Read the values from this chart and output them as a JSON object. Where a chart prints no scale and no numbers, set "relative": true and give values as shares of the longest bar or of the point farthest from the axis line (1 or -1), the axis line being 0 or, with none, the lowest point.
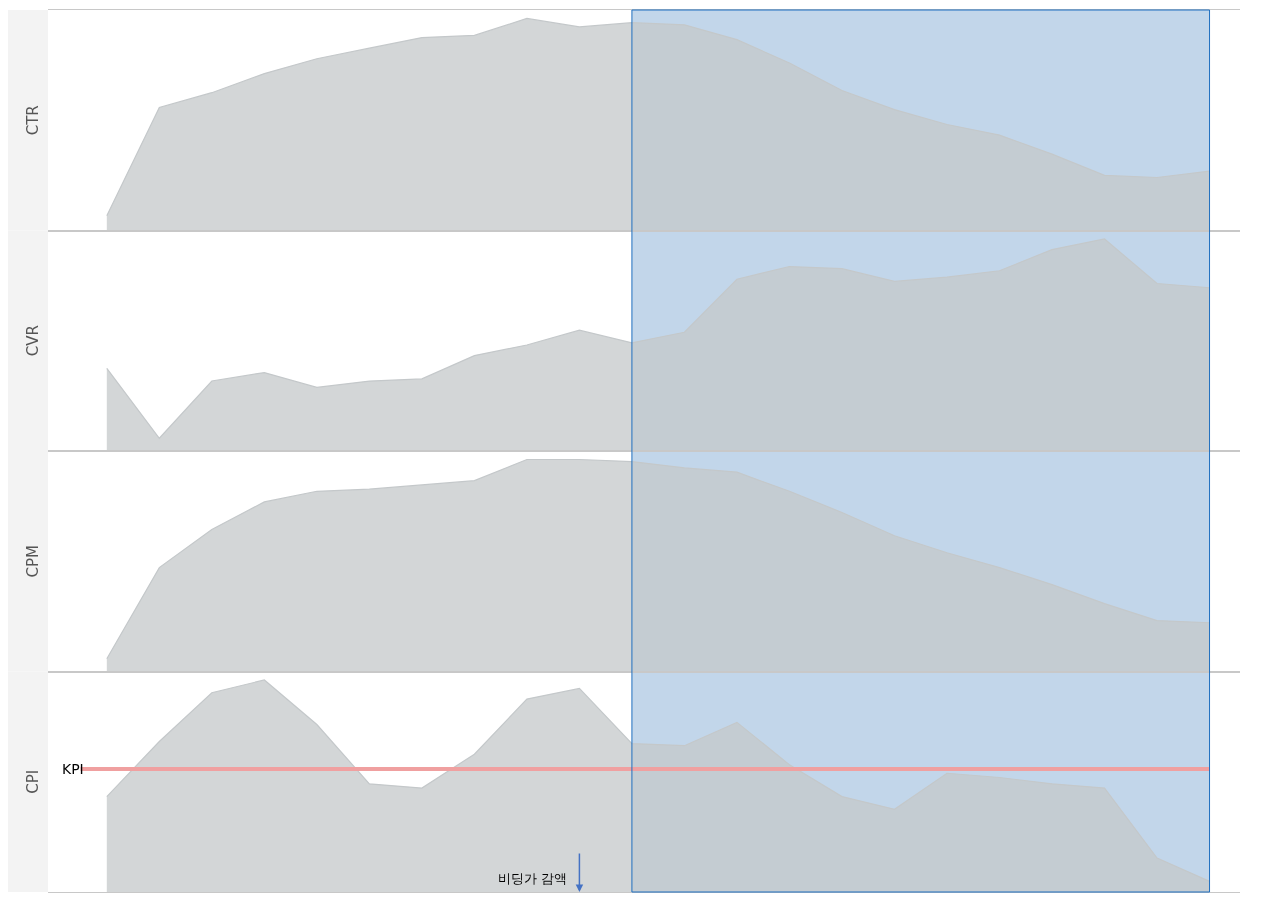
{
  "chart_data": [
    {
      "type": "area",
      "ylabel": "CTR",
      "relative": true,
      "categories": [
        null,
        null,
        null,
        null,
        null,
        null,
        null,
        null,
        null,
        null,
        null,
        null,
        null,
        null,
        null,
        null,
        null,
        null,
        null,
        null,
        null,
        null
      ],
      "values": [
        0.07,
        0.58,
        0.65,
        0.74,
        0.81,
        0.86,
        0.91,
        0.92,
        1,
        0.96,
        0.98,
        0.97,
        0.9,
        0.79,
        0.66,
        0.57,
        0.5,
        0.45,
        0.36,
        0.26,
        0.25,
        0.28
      ],
      "color": "#c4c8ca"
    },
    {
      "type": "area",
      "ylabel": "CVR",
      "relative": true,
      "categories": [
        null,
        null,
        null,
        null,
        null,
        null,
        null,
        null,
        null,
        null,
        null,
        null,
        null,
        null,
        null,
        null,
        null,
        null,
        null,
        null,
        null,
        null
      ],
      "values": [
        0.39,
        0.06,
        0.33,
        0.37,
        0.3,
        0.33,
        0.34,
        0.45,
        0.5,
        0.57,
        0.51,
        0.56,
        0.81,
        0.87,
        0.86,
        0.8,
        0.82,
        0.85,
        0.95,
        1,
        0.79,
        0.77
      ],
      "color": "#c4c8ca"
    },
    {
      "type": "area",
      "ylabel": "CPM",
      "relative": true,
      "categories": [
        null,
        null,
        null,
        null,
        null,
        null,
        null,
        null,
        null,
        null,
        null,
        null,
        null,
        null,
        null,
        null,
        null,
        null,
        null,
        null,
        null,
        null
      ],
      "values": [
        0.06,
        0.49,
        0.67,
        0.8,
        0.85,
        0.86,
        0.88,
        0.9,
        1,
        1,
        0.99,
        0.96,
        0.94,
        0.85,
        0.75,
        0.64,
        0.56,
        0.49,
        0.41,
        0.32,
        0.24,
        0.23
      ],
      "color": "#c4c8ca"
    },
    {
      "type": "area",
      "ylabel": "CPI",
      "relative": true,
      "categories": [
        null,
        null,
        null,
        null,
        null,
        null,
        null,
        null,
        null,
        null,
        null,
        null,
        null,
        null,
        null,
        null,
        null,
        null,
        null,
        null,
        null,
        null
      ],
      "values": [
        0.45,
        0.71,
        0.94,
        1,
        0.79,
        0.51,
        0.49,
        0.65,
        0.91,
        0.96,
        0.7,
        0.69,
        0.8,
        0.6,
        0.45,
        0.39,
        0.56,
        0.54,
        0.51,
        0.49,
        0.16,
        0.05
      ],
      "color": "#c4c8ca",
      "ref_lines": [
        {
          "axis": "y",
          "value": 0.58,
          "label": "KPI",
          "color": "#f0a0a0"
        }
      ],
      "annotations": [
        "비딩가 감액"
      ]
    }
  ]
}
